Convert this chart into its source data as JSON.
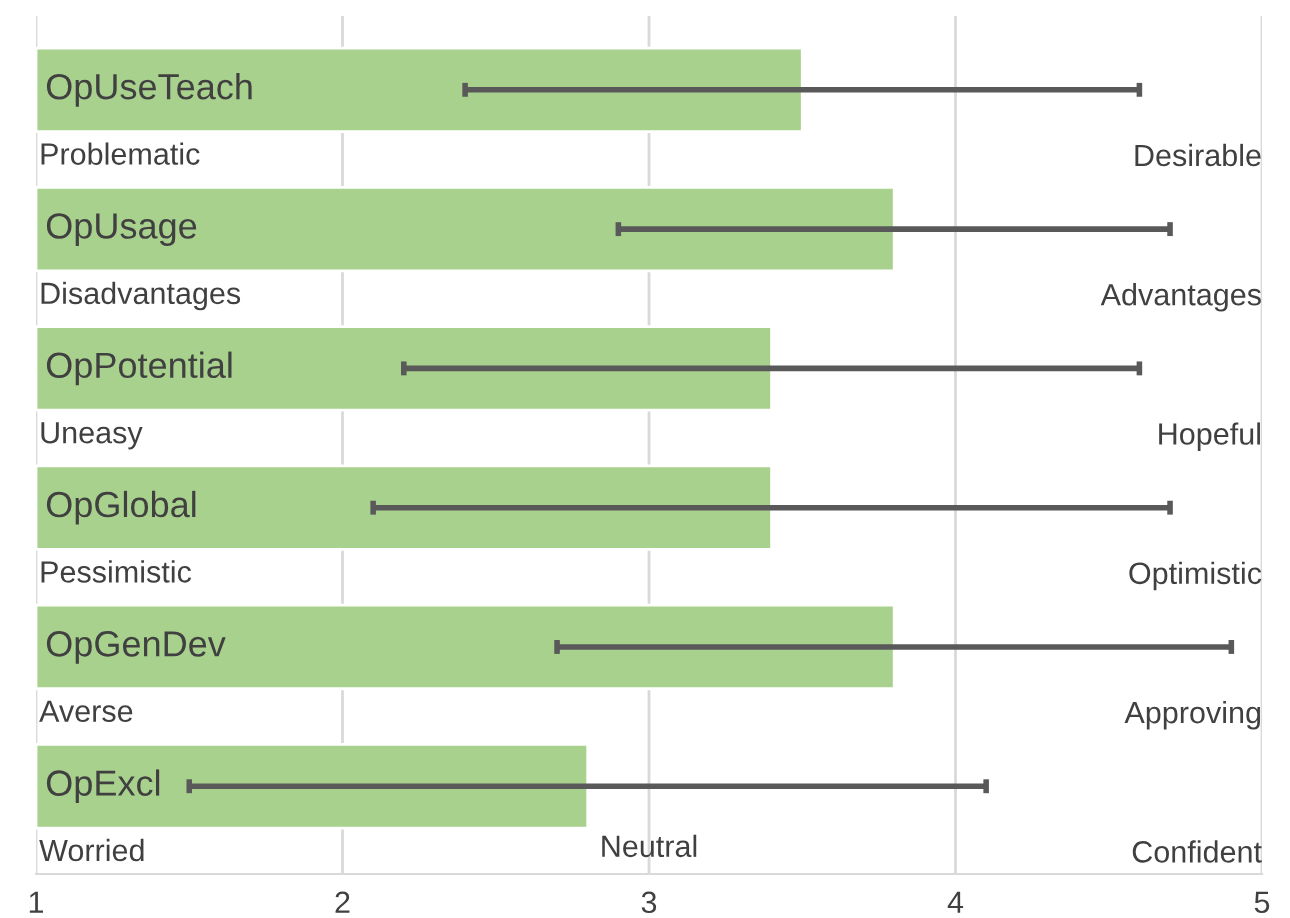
{
  "chart_data": {
    "type": "bar",
    "orientation": "horizontal",
    "categories": [
      "OpUseTeach",
      "OpUsage",
      "OpPotential",
      "OpGlobal",
      "OpGenDev",
      "OpExcl"
    ],
    "values": [
      3.5,
      3.8,
      3.4,
      3.4,
      3.8,
      2.8
    ],
    "errors": [
      [
        2.4,
        4.6
      ],
      [
        2.9,
        4.7
      ],
      [
        2.2,
        4.6
      ],
      [
        2.1,
        4.7
      ],
      [
        2.7,
        4.9
      ],
      [
        1.5,
        4.1
      ]
    ],
    "color": "#a9d18e",
    "xlim": [
      1,
      5
    ],
    "xticks": [
      1,
      2,
      3,
      4,
      5
    ],
    "grid": "x",
    "annotations": [
      "Problematic",
      "Desirable",
      "Disadvantages",
      "Advantages",
      "Uneasy",
      "Hopeful",
      "Pessimistic",
      "Optimistic",
      "Averse",
      "Approving",
      "Worried",
      "Confident",
      "Neutral"
    ]
  }
}
